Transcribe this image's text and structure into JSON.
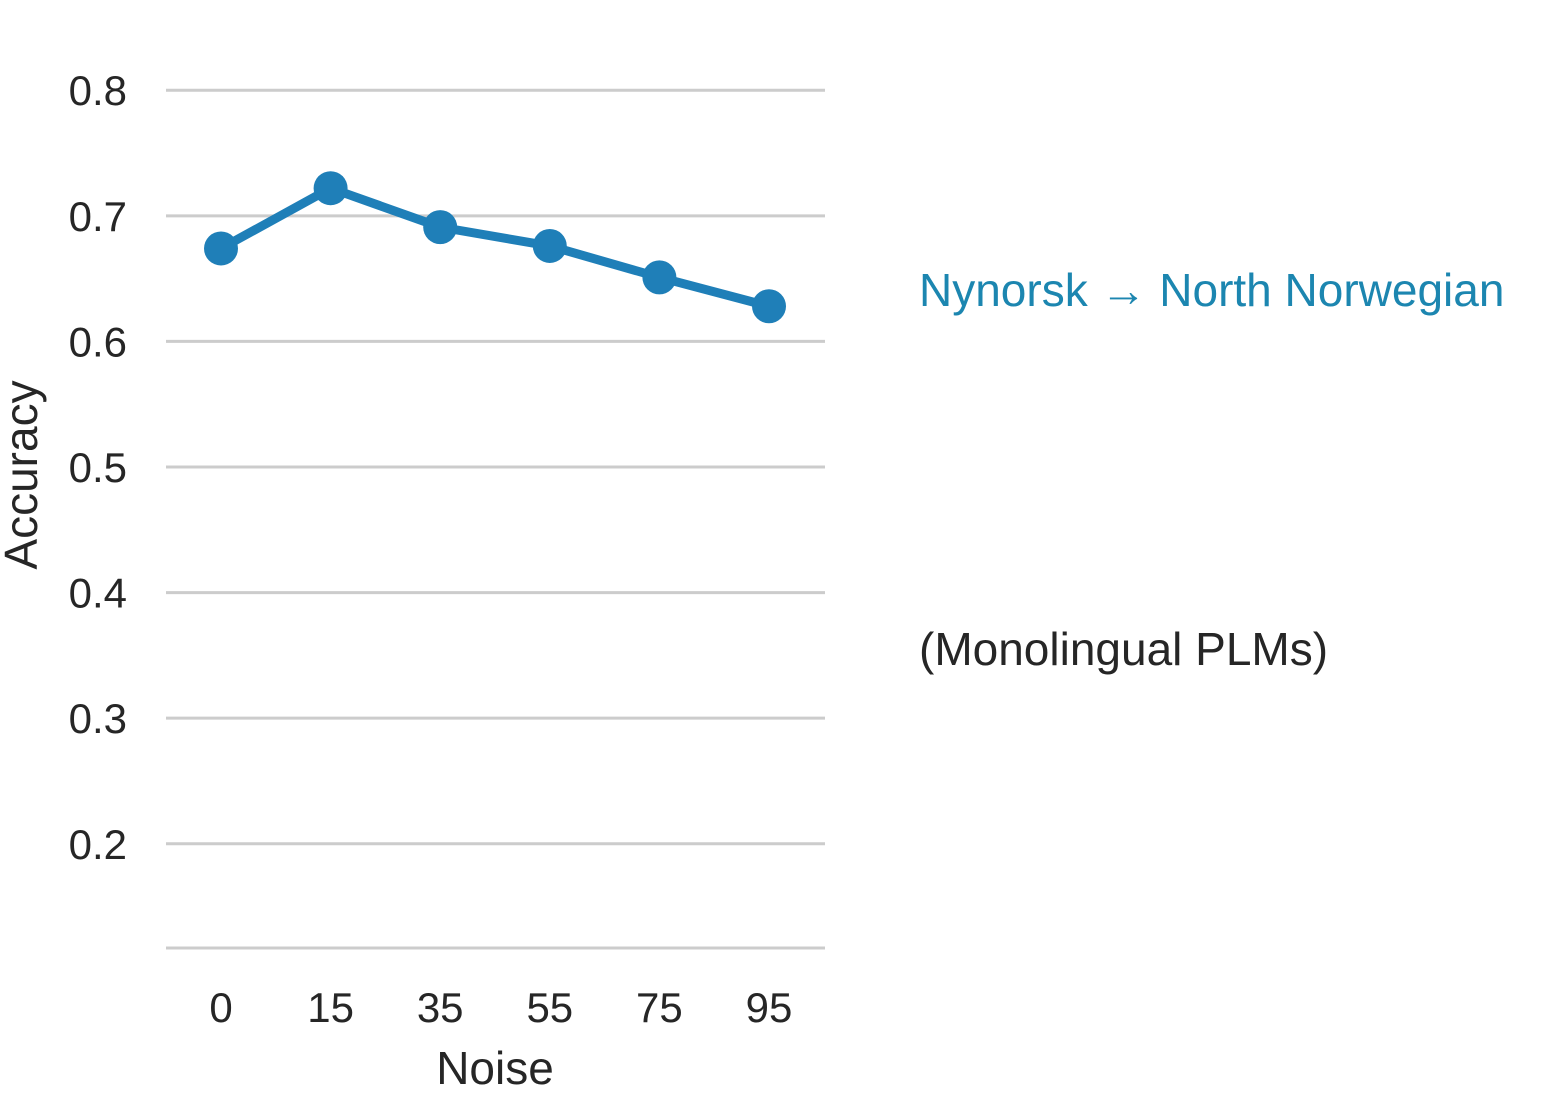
{
  "chart_data": {
    "type": "line",
    "title": "",
    "xlabel": "Noise",
    "ylabel": "Accuracy",
    "categories": [
      "0",
      "15",
      "35",
      "55",
      "75",
      "95"
    ],
    "series": [
      {
        "values": [
          0.674,
          0.722,
          0.691,
          0.676,
          0.651,
          0.628
        ],
        "color": "#1f7fb8"
      }
    ],
    "yticks": [
      "0.2",
      "0.3",
      "0.4",
      "0.5",
      "0.6",
      "0.7",
      "0.8"
    ],
    "ylim": [
      0.117,
      0.84
    ],
    "grid": "horizontal",
    "annotations": {
      "series_label": "Nynorsk → North Norwegian",
      "series_label_color": "#1c86b0",
      "note": "(Monolingual PLMs)",
      "note_color": "#262626"
    }
  }
}
